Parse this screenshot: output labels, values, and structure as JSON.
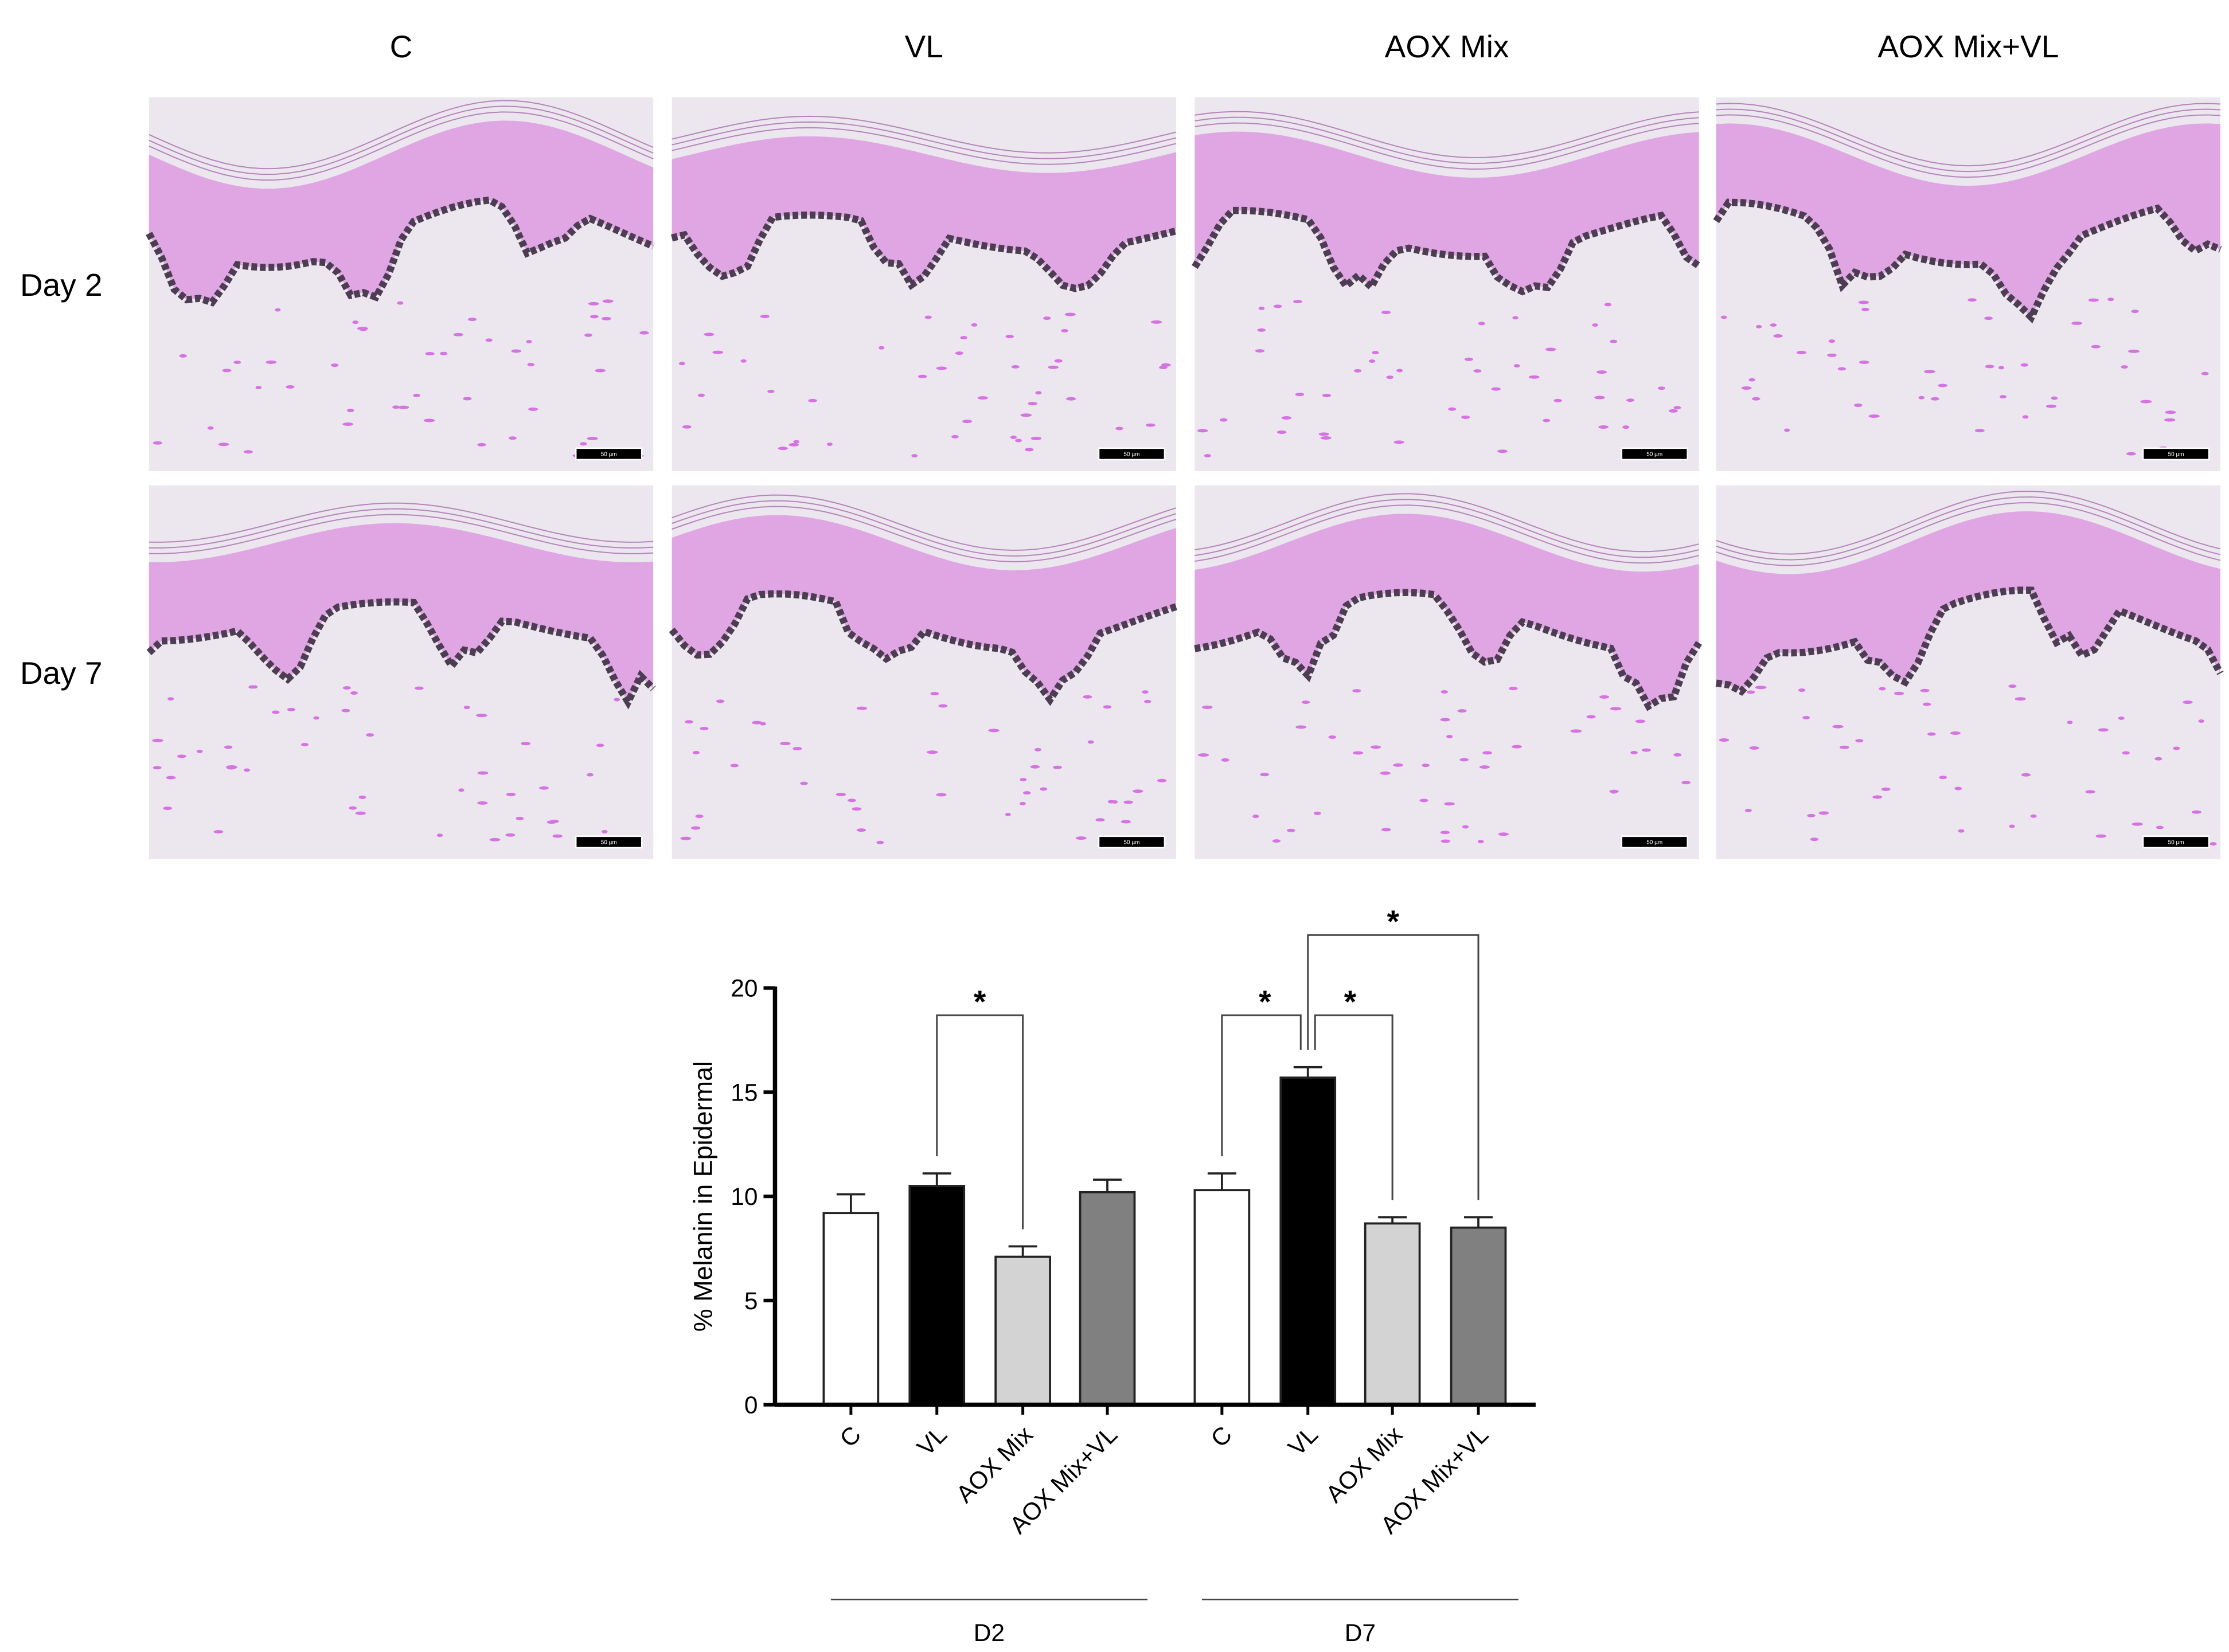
{
  "image_grid": {
    "columns": [
      "C",
      "VL",
      "AOX Mix",
      "AOX Mix+VL"
    ],
    "rows": [
      "Day 2",
      "Day 7"
    ],
    "scale_bar": "50 µm"
  },
  "chart_data": {
    "type": "grouped-bar",
    "y_label": "% Melanin in Epidermal",
    "categories": [
      "C",
      "VL",
      "AOX Mix",
      "AOX Mix+VL"
    ],
    "colors": [
      "#ffffff",
      "#000000",
      "#d3d3d3",
      "#808080"
    ],
    "groups": [
      {
        "name": "D2",
        "values": [
          9.2,
          10.5,
          7.1,
          10.2
        ],
        "errors": [
          0.9,
          0.6,
          0.5,
          0.6
        ]
      },
      {
        "name": "D7",
        "values": [
          10.3,
          15.7,
          8.7,
          8.5
        ],
        "errors": [
          0.8,
          0.5,
          0.3,
          0.5
        ]
      }
    ],
    "significance": [
      {
        "group": 0,
        "from": 1,
        "to": 2,
        "label": "*"
      },
      {
        "group": 1,
        "from": 0,
        "to": 1,
        "label": "*"
      },
      {
        "group": 1,
        "from": 1,
        "to": 2,
        "label": "*"
      },
      {
        "group": 1,
        "from": 1,
        "to": 3,
        "label": "*"
      }
    ],
    "ylim": [
      0,
      20
    ],
    "yticks": [
      0,
      5,
      10,
      15,
      20
    ]
  }
}
